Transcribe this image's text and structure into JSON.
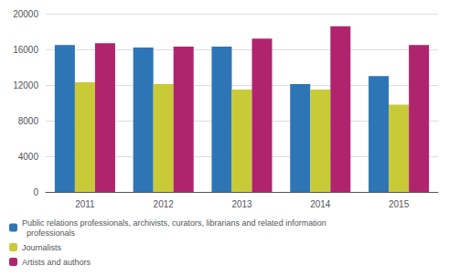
{
  "chart_data": {
    "type": "bar",
    "categories": [
      "2011",
      "2012",
      "2013",
      "2014",
      "2015"
    ],
    "series": [
      {
        "name": "Public relations professionals, archivists, curators, librarians and related information\n  professionals",
        "color": "#2E75B6",
        "values": [
          16500,
          16200,
          16300,
          12100,
          13000
        ]
      },
      {
        "name": "Journalists",
        "color": "#C9CA38",
        "values": [
          12300,
          12100,
          11500,
          11500,
          9800
        ]
      },
      {
        "name": "Artists and authors",
        "color": "#B0246E",
        "values": [
          16700,
          16300,
          17200,
          18600,
          16500
        ]
      }
    ],
    "ylim": [
      0,
      20000
    ],
    "yticks": [
      0,
      4000,
      8000,
      12000,
      16000,
      20000
    ],
    "grid": true,
    "legend": "lower left"
  }
}
